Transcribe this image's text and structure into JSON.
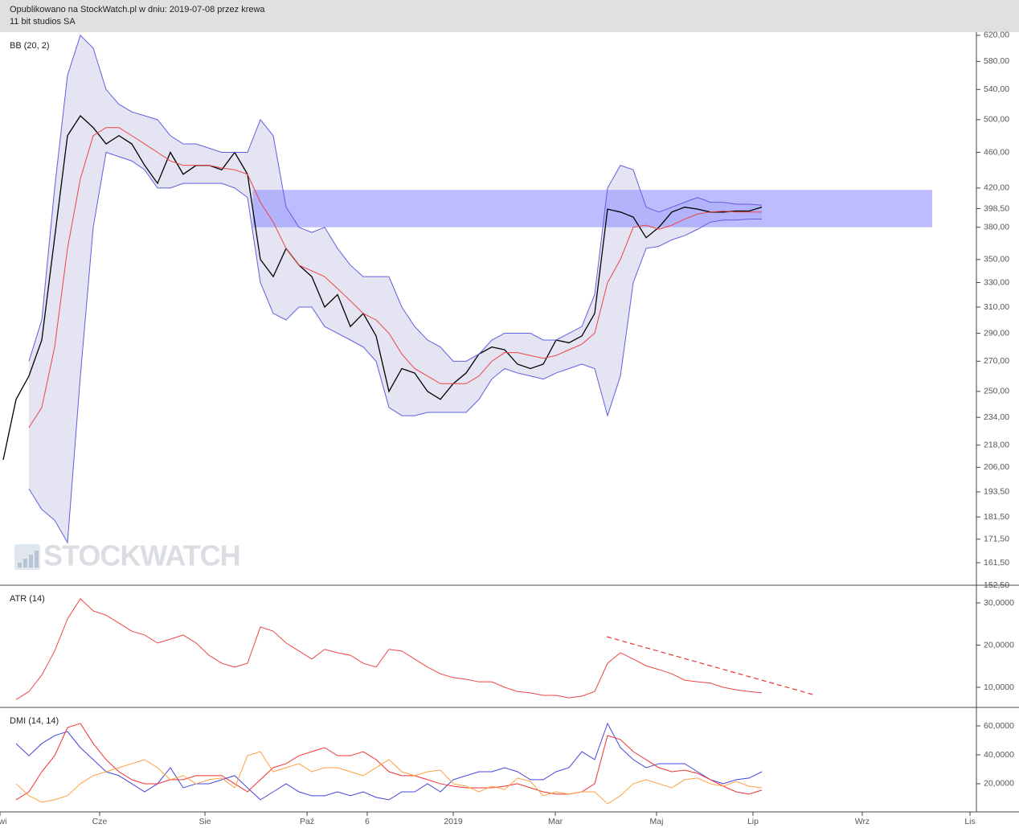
{
  "header": {
    "line1": "Opublikowano na StockWatch.pl w dniu: 2019-07-08 przez krewa",
    "line2": "11 bit studios SA"
  },
  "chart_data": [
    {
      "type": "line",
      "title": "BB (20, 2)",
      "watermark": "STOCKWATCH",
      "log_scale": true,
      "xlim": [
        -0.25,
        75.6875
      ],
      "ylim": [
        152.5,
        625
      ],
      "yticks": [
        {
          "value": 620,
          "label": "620,00"
        },
        {
          "value": 580,
          "label": "580,00"
        },
        {
          "value": 540,
          "label": "540,00"
        },
        {
          "value": 500,
          "label": "500,00"
        },
        {
          "value": 460,
          "label": "460,00"
        },
        {
          "value": 420,
          "label": "420,00"
        },
        {
          "value": 398.5,
          "label": "398,50"
        },
        {
          "value": 380,
          "label": "380,00"
        },
        {
          "value": 350,
          "label": "350,00"
        },
        {
          "value": 330,
          "label": "330,00"
        },
        {
          "value": 310,
          "label": "310,00"
        },
        {
          "value": 290,
          "label": "290,00"
        },
        {
          "value": 270,
          "label": "270,00"
        },
        {
          "value": 250,
          "label": "250,00"
        },
        {
          "value": 234,
          "label": "234,00"
        },
        {
          "value": 218,
          "label": "218,00"
        },
        {
          "value": 206,
          "label": "206,00"
        },
        {
          "value": 193.5,
          "label": "193,50"
        },
        {
          "value": 181.5,
          "label": "181,50"
        },
        {
          "value": 171.5,
          "label": "171,50"
        },
        {
          "value": 161.5,
          "label": "161,50"
        },
        {
          "value": 152.5,
          "label": "152,50"
        }
      ],
      "fill_between": [
        1,
        3
      ],
      "fill_color": "#e4e4f2",
      "zone": {
        "from": 380,
        "to": 418,
        "x": [
          19.4,
          72.25
        ],
        "color": "#9898ff"
      },
      "series": [
        {
          "color": "#000000",
          "values": [
            210,
            245,
            260,
            285,
            370,
            480,
            505,
            490,
            470,
            480,
            470,
            445,
            425,
            460,
            435,
            445,
            445,
            440,
            460,
            435,
            350,
            335,
            360,
            345,
            335,
            310,
            320,
            295,
            305,
            288,
            250,
            265,
            262,
            250,
            245,
            255,
            262,
            275,
            280,
            278,
            268,
            265,
            268,
            285,
            283,
            288,
            305,
            398,
            395,
            390,
            370,
            380,
            395,
            400,
            398,
            395,
            395,
            396,
            396,
            400
          ]
        },
        {
          "color": "#6060e0",
          "values": [
            null,
            null,
            270,
            300,
            420,
            560,
            620,
            600,
            540,
            520,
            510,
            505,
            500,
            480,
            470,
            470,
            465,
            460,
            460,
            460,
            500,
            480,
            400,
            380,
            375,
            380,
            360,
            345,
            335,
            335,
            335,
            310,
            295,
            285,
            280,
            270,
            270,
            275,
            285,
            290,
            290,
            290,
            285,
            285,
            290,
            295,
            320,
            420,
            445,
            440,
            400,
            395,
            400,
            405,
            410,
            405,
            405,
            403,
            403,
            402
          ]
        },
        {
          "color": "#ee4444",
          "values": [
            null,
            null,
            228,
            240,
            280,
            360,
            430,
            480,
            490,
            490,
            480,
            470,
            460,
            450,
            445,
            445,
            445,
            442,
            440,
            435,
            405,
            385,
            360,
            345,
            340,
            335,
            325,
            315,
            305,
            300,
            290,
            275,
            265,
            260,
            255,
            255,
            255,
            260,
            270,
            276,
            276,
            274,
            272,
            274,
            278,
            282,
            290,
            330,
            350,
            380,
            382,
            378,
            382,
            388,
            393,
            395,
            396,
            395,
            395,
            395
          ]
        },
        {
          "color": "#6060e0",
          "values": [
            null,
            null,
            195,
            185,
            180,
            170,
            260,
            380,
            460,
            455,
            450,
            440,
            420,
            420,
            425,
            425,
            425,
            425,
            420,
            410,
            330,
            305,
            300,
            310,
            310,
            295,
            290,
            285,
            280,
            270,
            240,
            235,
            235,
            237,
            237,
            237,
            237,
            245,
            258,
            265,
            262,
            260,
            258,
            262,
            265,
            268,
            265,
            235,
            260,
            330,
            360,
            362,
            368,
            372,
            378,
            385,
            387,
            387,
            388,
            388
          ]
        }
      ]
    },
    {
      "type": "line",
      "title": "ATR (14)",
      "xlim": [
        -0.25,
        75.6875
      ],
      "ylim": [
        5.24,
        34.19
      ],
      "yticks": [
        {
          "value": 30,
          "label": "30,0000"
        },
        {
          "value": 20,
          "label": "20,0000"
        },
        {
          "value": 10,
          "label": "10,0000"
        }
      ],
      "trendline": {
        "x": [
          46.94,
          63.19
        ],
        "values": [
          22,
          8.1
        ],
        "color": "#ee3333"
      },
      "series": [
        {
          "color": "#ee4444",
          "values": [
            null,
            7.1,
            9,
            12.9,
            18.6,
            26.2,
            31,
            28.1,
            27.1,
            25.2,
            23.3,
            22.4,
            20.5,
            21.4,
            22.4,
            20.5,
            17.6,
            15.7,
            14.8,
            15.7,
            24.3,
            23.3,
            20.5,
            18.6,
            16.7,
            19,
            18.2,
            17.6,
            15.7,
            14.8,
            19,
            18.6,
            16.7,
            14.8,
            13.2,
            12.3,
            11.9,
            11.3,
            11.3,
            10,
            9,
            8.7,
            8.1,
            8.1,
            7.5,
            7.9,
            9,
            15.7,
            18.2,
            16.7,
            15.1,
            14.2,
            13.2,
            11.7,
            11.3,
            11,
            10,
            9.4,
            9,
            8.7
          ]
        }
      ]
    },
    {
      "type": "line",
      "title": "DMI (14, 14)",
      "xlim": [
        -0.25,
        75.6875
      ],
      "ylim": [
        0.5,
        72.8
      ],
      "yticks": [
        {
          "value": 60,
          "label": "60,0000"
        },
        {
          "value": 40,
          "label": "40,0000"
        },
        {
          "value": 20,
          "label": "20,0000"
        }
      ],
      "xticks": [
        {
          "value": -0.25,
          "label": "Kwi"
        },
        {
          "value": 7.5,
          "label": "Cze"
        },
        {
          "value": 15.69,
          "label": "Sie"
        },
        {
          "value": 23.63,
          "label": "Paź"
        },
        {
          "value": 28.31,
          "label": "6"
        },
        {
          "value": 35,
          "label": "2019"
        },
        {
          "value": 42.94,
          "label": "Mar"
        },
        {
          "value": 50.81,
          "label": "Maj"
        },
        {
          "value": 58.31,
          "label": "Lip"
        },
        {
          "value": 66.81,
          "label": "Wrz"
        },
        {
          "value": 75.19,
          "label": "Lis"
        }
      ],
      "series": [
        {
          "color": "#4444dd",
          "values": [
            null,
            47.8,
            39.4,
            47.8,
            53.3,
            56.1,
            45,
            36.7,
            28.3,
            25.6,
            20,
            14.4,
            20,
            31.1,
            17.2,
            20,
            20,
            22.8,
            25.6,
            17.2,
            8.9,
            14.4,
            20,
            14.4,
            11.7,
            11.7,
            14.4,
            11.7,
            14.4,
            10.6,
            8.9,
            14.4,
            14.4,
            20,
            14.4,
            22.8,
            25.6,
            28.3,
            28.3,
            31.1,
            28.3,
            22.8,
            22.8,
            28.3,
            31.1,
            42.2,
            36.7,
            61.7,
            45,
            36.7,
            31.1,
            33.9,
            33.9,
            33.9,
            28.3,
            22.8,
            20,
            22.8,
            23.9,
            28.3
          ]
        },
        {
          "color": "#ee3333",
          "values": [
            null,
            8.9,
            14.4,
            28.3,
            39.4,
            58.9,
            61.7,
            47.8,
            36.7,
            28.3,
            22.8,
            20,
            20,
            22.8,
            22.8,
            25.6,
            25.6,
            25.6,
            20,
            14.4,
            22.8,
            31.1,
            33.9,
            39.4,
            42.2,
            45,
            39.4,
            39.4,
            42.2,
            36.7,
            28.3,
            25.6,
            25.6,
            22.8,
            20,
            18.3,
            17.2,
            17.2,
            17.2,
            18.3,
            20,
            17.2,
            14.4,
            12.8,
            12.8,
            14.4,
            20,
            53.3,
            50.6,
            42.2,
            36.7,
            31.1,
            28.3,
            29.4,
            27.2,
            22.8,
            18.3,
            14.4,
            12.8,
            15.6
          ]
        },
        {
          "color": "#ffa040",
          "values": [
            null,
            20,
            11.7,
            7.2,
            8.9,
            11.7,
            20,
            25.6,
            28.3,
            31.1,
            33.9,
            36.7,
            31.1,
            22.8,
            25.6,
            20,
            22.8,
            23.9,
            17.2,
            39.4,
            42.2,
            28.3,
            31.1,
            33.9,
            28.3,
            31.1,
            31.1,
            28.3,
            25.6,
            31.1,
            36.7,
            28.3,
            25.6,
            28.3,
            29.4,
            20,
            18.3,
            14.4,
            18.3,
            16.1,
            23.9,
            21.7,
            11.7,
            14.4,
            12.8,
            14.4,
            14.4,
            6.1,
            11.7,
            20,
            22.8,
            20,
            17.2,
            22.8,
            23.9,
            20,
            18.3,
            21.7,
            18.3,
            17.2
          ]
        }
      ]
    }
  ]
}
